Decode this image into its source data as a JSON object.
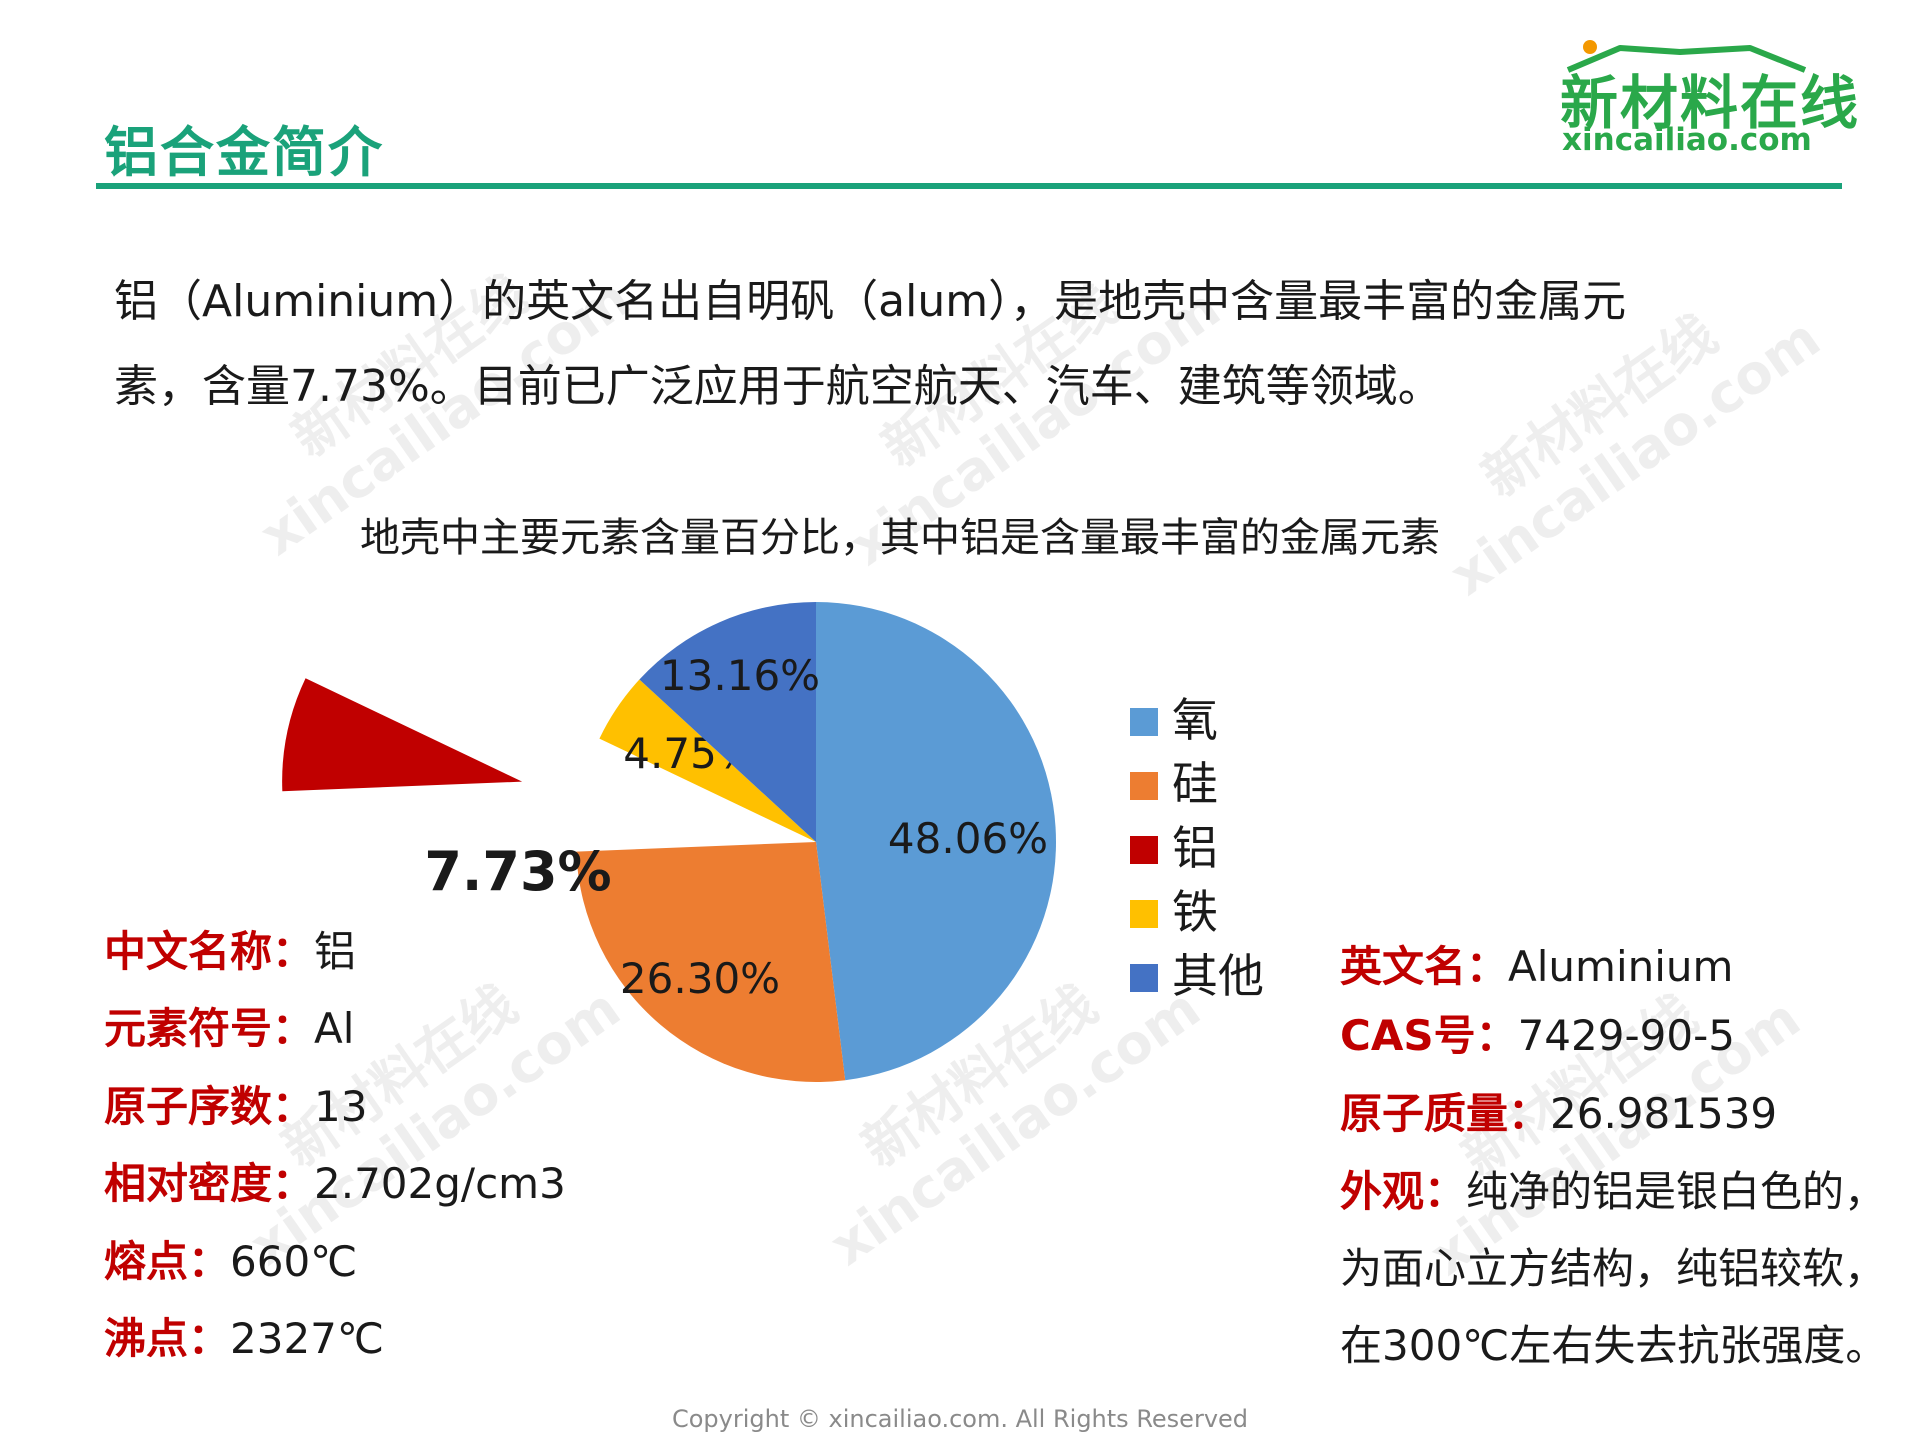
{
  "header": {
    "title": "铝合金简介",
    "logo_cn": "新材料在线",
    "logo_en": "xincailiao.com"
  },
  "intro": {
    "line1": "铝（Aluminium）的英文名出自明矾（alum），是地壳中含量最丰富的金属元",
    "line2": "素，含量7.73%。目前已广泛应用于航空航天、汽车、建筑等领域。"
  },
  "chart_title": "地壳中主要元素含量百分比，其中铝是含量最丰富的金属元素",
  "chart_data": {
    "type": "pie",
    "title": "地壳中主要元素含量百分比，其中铝是含量最丰富的金属元素",
    "categories": [
      "氧",
      "硅",
      "铝",
      "铁",
      "其他"
    ],
    "values": [
      48.06,
      26.3,
      7.73,
      4.75,
      13.16
    ],
    "labels": [
      "48.06%",
      "26.30%",
      "7.73%",
      "4.75%",
      "13.16%"
    ],
    "colors": [
      "#5b9bd5",
      "#ed7d31",
      "#c00000",
      "#ffc000",
      "#4472c4"
    ],
    "exploded": "铝",
    "legend_position": "right"
  },
  "info_left": [
    {
      "key": "中文名称：",
      "value": "铝"
    },
    {
      "key": "元素符号：",
      "value": "Al"
    },
    {
      "key": "原子序数：",
      "value": "13"
    },
    {
      "key": "相对密度：",
      "value": "2.702g/cm3"
    },
    {
      "key": "熔点：",
      "value": "660℃"
    },
    {
      "key": "沸点：",
      "value": "2327℃"
    }
  ],
  "info_right": [
    {
      "key": "英文名：",
      "value": "Aluminium"
    },
    {
      "key": "CAS号：",
      "value": "7429-90-5"
    },
    {
      "key": "原子质量：",
      "value": "26.981539"
    },
    {
      "key": "外观：",
      "value": "纯净的铝是银白色的，"
    }
  ],
  "appearance_cont": [
    "为面心立方结构，纯铝较软，",
    "在300℃左右失去抗张强度。"
  ],
  "watermark": {
    "cn": "新材料在线",
    "en": "xincailiao.com"
  },
  "footer": "Copyright © xincailiao.com. All Rights Reserved"
}
